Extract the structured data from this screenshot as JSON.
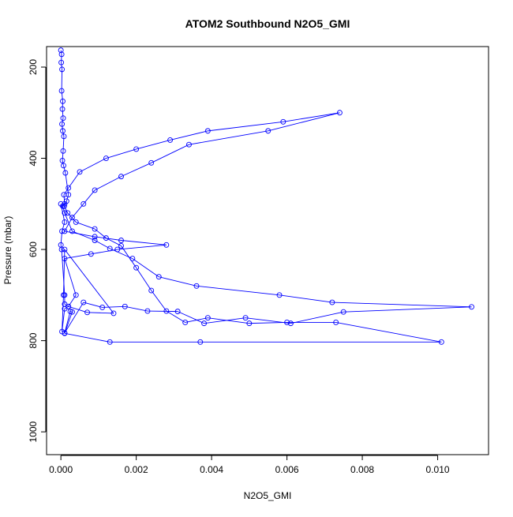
{
  "chart_data": {
    "type": "line",
    "title": "ATOM2 Southbound N2O5_GMI",
    "xlabel": "N2O5_GMI",
    "ylabel": "Pressure (mbar)",
    "xlim": [
      -0.00038,
      0.01135
    ],
    "ylim": [
      1050,
      155
    ],
    "y_reversed": true,
    "grid": false,
    "legend": "none",
    "colors": {
      "series": "#0000ff",
      "axis": "#000000",
      "background": "#ffffff"
    },
    "x_ticks": [
      {
        "value": 0.0,
        "label": "0.000"
      },
      {
        "value": 0.002,
        "label": "0.002"
      },
      {
        "value": 0.004,
        "label": "0.004"
      },
      {
        "value": 0.006,
        "label": "0.006"
      },
      {
        "value": 0.008,
        "label": "0.008"
      },
      {
        "value": 0.01,
        "label": "0.010"
      }
    ],
    "y_ticks": [
      {
        "value": 200,
        "label": "200"
      },
      {
        "value": 400,
        "label": "400"
      },
      {
        "value": 600,
        "label": "600"
      },
      {
        "value": 800,
        "label": "800"
      },
      {
        "value": 1000,
        "label": "1000"
      }
    ],
    "series": [
      {
        "x": [
          0.0,
          2e-05,
          1e-05,
          3e-05,
          2e-05,
          5e-05,
          4e-05,
          6e-05,
          3e-05,
          5e-05,
          8e-05,
          6e-05,
          4e-05,
          7e-05,
          0.00012,
          0.0002,
          0.00015,
          9e-05,
          0.00018,
          0.0004,
          0.0009,
          0.0012,
          0.0016,
          0.002,
          0.0024,
          0.0028,
          0.0033,
          0.0039,
          0.005,
          0.006,
          0.0073,
          0.0101,
          0.0037,
          0.0013,
          0.0001,
          0.0003,
          0.00025,
          0.0001,
          0.0006,
          0.0011,
          0.0017,
          0.0023,
          0.0031,
          0.0038,
          0.0049,
          0.0061,
          0.0075,
          0.0109,
          0.0072,
          0.0058,
          0.0036,
          0.0026,
          0.0019,
          0.0013,
          0.0009,
          0.0003,
          0.0001,
          5e-05,
          0.0001,
          8e-05,
          0.0002,
          0.0005,
          0.0012,
          0.002,
          0.0029,
          0.0039,
          0.0059,
          0.0074,
          0.0055,
          0.0034,
          0.0024,
          0.0016,
          0.0009,
          0.0006,
          0.0003,
          0.0001,
          0.0009,
          0.0016,
          0.0028,
          0.0015,
          0.0008,
          0.0001,
          0.0004,
          0.0002,
          0.0001,
          3e-05,
          7e-05,
          0.0001,
          0.0014,
          0.0007,
          0.0002,
          0.0001,
          0.0001,
          2e-05,
          0.0,
          3e-05,
          0.0001,
          0.0
        ],
        "y": [
          163,
          172,
          190,
          205,
          252,
          275,
          292,
          312,
          325,
          340,
          352,
          384,
          405,
          416,
          432,
          480,
          494,
          505,
          520,
          540,
          555,
          575,
          592,
          640,
          690,
          735,
          760,
          750,
          762,
          760,
          760,
          803,
          803,
          803,
          784,
          737,
          736,
          783,
          716,
          727,
          725,
          735,
          736,
          762,
          750,
          762,
          737,
          726,
          716,
          700,
          680,
          660,
          620,
          598,
          580,
          560,
          520,
          505,
          500,
          480,
          465,
          430,
          400,
          380,
          360,
          340,
          320,
          300,
          340,
          370,
          410,
          440,
          470,
          500,
          530,
          560,
          572,
          580,
          590,
          600,
          610,
          620,
          700,
          725,
          730,
          780,
          700,
          600,
          740,
          738,
          725,
          720,
          700,
          600,
          590,
          560,
          540,
          500
        ]
      }
    ]
  }
}
